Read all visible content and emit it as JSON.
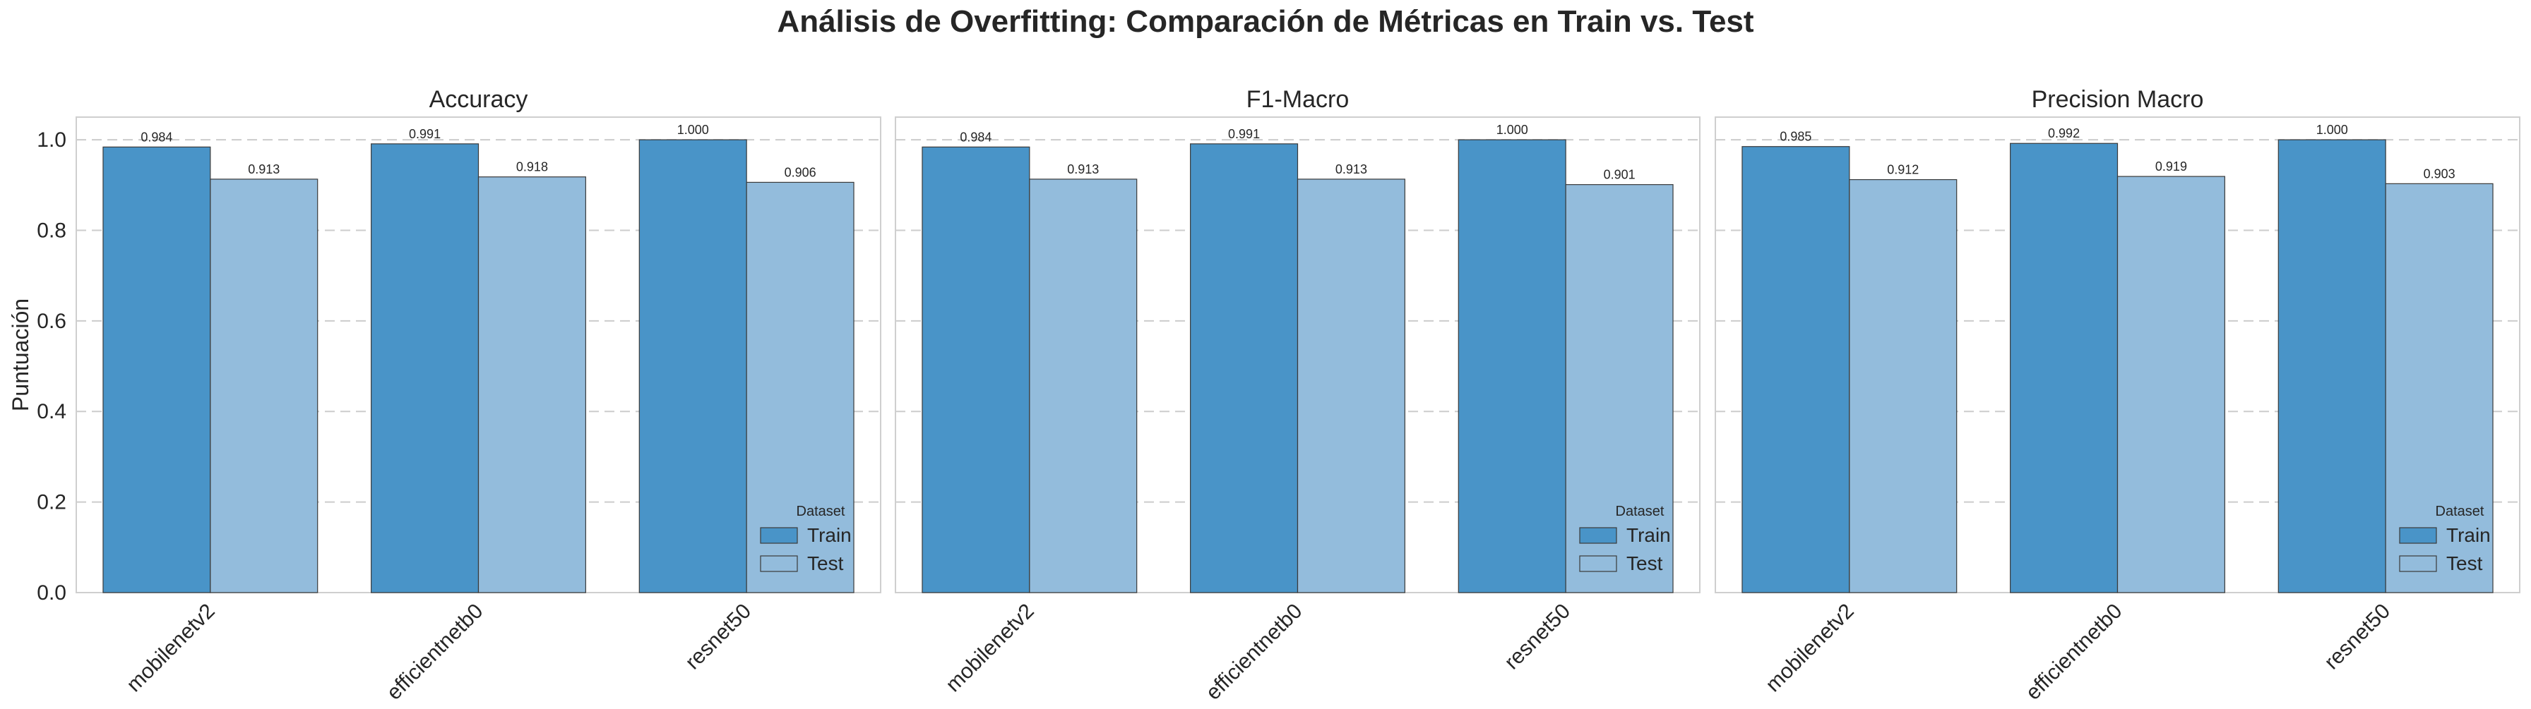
{
  "figure": {
    "title": "Análisis de Overfitting: Comparación de Métricas en Train vs. Test",
    "ylabel": "Puntuación"
  },
  "chart_data": [
    {
      "type": "bar",
      "title": "Accuracy",
      "categories": [
        "mobilenetv2",
        "efficientnetb0",
        "resnet50"
      ],
      "series": [
        {
          "name": "Train",
          "values": [
            0.984,
            0.991,
            1.0
          ],
          "labels": [
            "0.984",
            "0.991",
            "1.000"
          ]
        },
        {
          "name": "Test",
          "values": [
            0.913,
            0.918,
            0.906
          ],
          "labels": [
            "0.913",
            "0.918",
            "0.906"
          ]
        }
      ],
      "ylabel": "Puntuación",
      "ylim": [
        0,
        1.05
      ],
      "yticks": [
        "0.0",
        "0.2",
        "0.4",
        "0.6",
        "0.8",
        "1.0"
      ],
      "grid": "y-dashed",
      "legend": {
        "title": "Dataset",
        "placement": "lower-right"
      }
    },
    {
      "type": "bar",
      "title": "F1-Macro",
      "categories": [
        "mobilenetv2",
        "efficientnetb0",
        "resnet50"
      ],
      "series": [
        {
          "name": "Train",
          "values": [
            0.984,
            0.991,
            1.0
          ],
          "labels": [
            "0.984",
            "0.991",
            "1.000"
          ]
        },
        {
          "name": "Test",
          "values": [
            0.913,
            0.913,
            0.901
          ],
          "labels": [
            "0.913",
            "0.913",
            "0.901"
          ]
        }
      ],
      "ylim": [
        0,
        1.05
      ],
      "grid": "y-dashed",
      "legend": {
        "title": "Dataset",
        "placement": "lower-right"
      }
    },
    {
      "type": "bar",
      "title": "Precision Macro",
      "categories": [
        "mobilenetv2",
        "efficientnetb0",
        "resnet50"
      ],
      "series": [
        {
          "name": "Train",
          "values": [
            0.985,
            0.992,
            1.0
          ],
          "labels": [
            "0.985",
            "0.992",
            "1.000"
          ]
        },
        {
          "name": "Test",
          "values": [
            0.912,
            0.919,
            0.903
          ],
          "labels": [
            "0.912",
            "0.919",
            "0.903"
          ]
        }
      ],
      "ylim": [
        0,
        1.05
      ],
      "grid": "y-dashed",
      "legend": {
        "title": "Dataset",
        "placement": "lower-right"
      }
    }
  ],
  "colors": {
    "train": "#4994c8",
    "test": "#93bcdc",
    "bar_edge": "#3a3a3a",
    "grid": "#cccccc",
    "frame": "#cfcfcf"
  }
}
